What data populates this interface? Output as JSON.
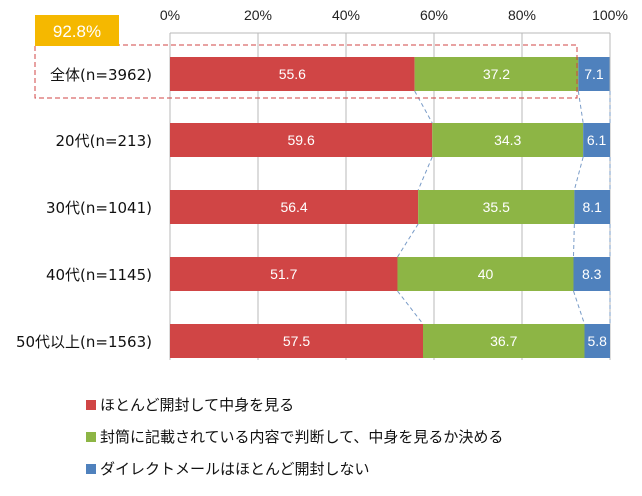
{
  "chart_data": {
    "type": "bar",
    "orientation": "horizontal",
    "stacked": true,
    "percent": true,
    "categories": [
      "全体(n=3962)",
      "20代(n=213)",
      "30代(n=1041)",
      "40代(n=1145)",
      "50代以上(n=1563)"
    ],
    "series": [
      {
        "name": "ほとんど開封して中身を見る",
        "color": "#d04545",
        "values": [
          55.6,
          59.6,
          56.4,
          51.7,
          57.5
        ]
      },
      {
        "name": "封筒に記載されている内容で判断して、中身を見るか決める",
        "color": "#8db545",
        "values": [
          37.2,
          34.3,
          35.5,
          40,
          36.7
        ]
      },
      {
        "name": "ダイレクトメールはほとんど開封しない",
        "color": "#4f81bd",
        "values": [
          7.1,
          6.1,
          8.1,
          8.3,
          5.8
        ]
      }
    ],
    "xlim": [
      0,
      100
    ],
    "xticks": [
      "0%",
      "20%",
      "40%",
      "60%",
      "80%",
      "100%"
    ],
    "grid": true,
    "legend_position": "bottom-left",
    "annotation": {
      "label": "92.8%",
      "color": "#f5b800",
      "highlight_color": "#d04545"
    }
  }
}
